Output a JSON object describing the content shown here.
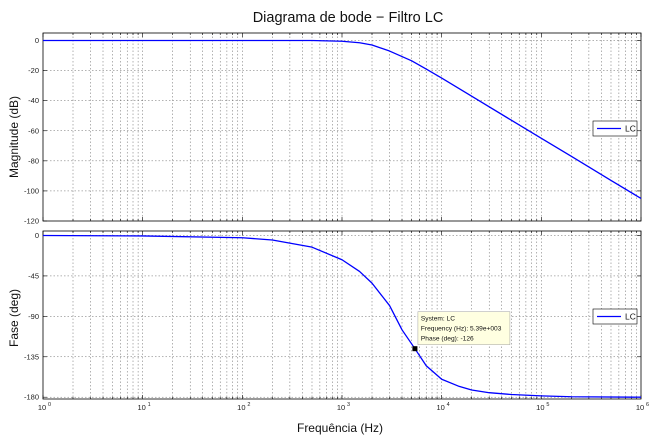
{
  "chart_data": {
    "type": "line",
    "title": "Diagrama de bode − Filtro LC",
    "xlabel": "Frequência (Hz)",
    "x_scale": "log",
    "x_range": [
      1,
      1000000
    ],
    "grid": true,
    "colors": {
      "line": "#0000ff",
      "axis": "#000000",
      "grid": "#666666",
      "tooltip_bg": "#ffffe1"
    },
    "subplots": [
      {
        "name": "magnitude",
        "ylabel": "Magnitude (dB)",
        "ylim": [
          -120,
          5
        ],
        "yticks": [
          0,
          -20,
          -40,
          -60,
          -80,
          -100,
          -120
        ],
        "legend": {
          "label": "LC",
          "position": "right"
        },
        "series": [
          {
            "name": "LC",
            "x": [
              1,
              10,
              100,
              500,
              1000,
              1500,
              2000,
              3000,
              5000,
              7000,
              10000,
              20000,
              50000,
              100000,
              200000,
              500000,
              1000000
            ],
            "y": [
              0,
              0,
              0,
              0,
              -0.5,
              -1.5,
              -3,
              -7,
              -13.5,
              -19,
              -25,
              -37,
              -53,
              -65,
              -77,
              -93,
              -105
            ]
          }
        ]
      },
      {
        "name": "phase",
        "ylabel": "Fase (deg)",
        "ylim": [
          -182,
          5
        ],
        "yticks": [
          0,
          -45,
          -90,
          -135,
          -180
        ],
        "legend": {
          "label": "LC",
          "position": "right"
        },
        "series": [
          {
            "name": "LC",
            "x": [
              1,
              10,
              100,
              200,
              500,
              1000,
              1500,
              2000,
              3000,
              4000,
              5390,
              7000,
              10000,
              15000,
              20000,
              30000,
              50000,
              100000,
              200000,
              1000000
            ],
            "y": [
              0,
              -0.5,
              -2.5,
              -5,
              -13,
              -27,
              -40,
              -53,
              -78,
              -105,
              -126,
              -145,
              -160,
              -168,
              -172,
              -175,
              -177,
              -178.5,
              -179.5,
              -180
            ]
          }
        ],
        "datatip": {
          "x": 5390,
          "y": -126,
          "lines": [
            "System: LC",
            "Frequency (Hz): 5.39e+003",
            "Phase (deg): -126"
          ]
        }
      }
    ]
  }
}
